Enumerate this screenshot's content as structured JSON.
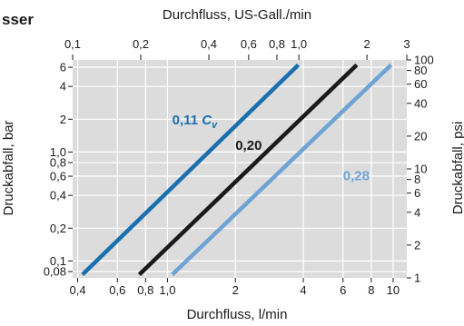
{
  "header": {
    "title_fragment": "sser"
  },
  "chart_data": {
    "type": "line",
    "title": "",
    "xlabel": "Durchfluss, l/min",
    "x2label": "Durchfluss, US-Gall./min",
    "ylabel": "Druckabfall, bar",
    "y2label": "Druckabfall, psi",
    "x_scale": "log",
    "y_scale": "log",
    "xlim": [
      0.38,
      11.5
    ],
    "ylim": [
      0.07,
      7.0
    ],
    "x2lim": [
      0.1,
      3.0
    ],
    "y2lim": [
      1,
      100
    ],
    "grid": true,
    "x_ticks": [
      {
        "value": 0.4,
        "label": "0,4"
      },
      {
        "value": 0.6,
        "label": "0,6"
      },
      {
        "value": 0.8,
        "label": "0,8"
      },
      {
        "value": 1.0,
        "label": "1,0"
      },
      {
        "value": 2,
        "label": "2"
      },
      {
        "value": 4,
        "label": "4"
      },
      {
        "value": 6,
        "label": "6"
      },
      {
        "value": 8,
        "label": "8"
      },
      {
        "value": 10,
        "label": "10"
      }
    ],
    "x2_ticks": [
      {
        "value": 0.1,
        "label": "0,1"
      },
      {
        "value": 0.2,
        "label": "0,2"
      },
      {
        "value": 0.4,
        "label": "0,4"
      },
      {
        "value": 0.6,
        "label": "0,6"
      },
      {
        "value": 0.8,
        "label": "0,8"
      },
      {
        "value": 1.0,
        "label": "1,0"
      },
      {
        "value": 2,
        "label": "2"
      },
      {
        "value": 3,
        "label": "3"
      }
    ],
    "y_ticks": [
      {
        "value": 6,
        "label": "6"
      },
      {
        "value": 4,
        "label": "4"
      },
      {
        "value": 2,
        "label": "2"
      },
      {
        "value": 1.0,
        "label": "1,0"
      },
      {
        "value": 0.8,
        "label": "0,8"
      },
      {
        "value": 0.6,
        "label": "0,6"
      },
      {
        "value": 0.4,
        "label": "0,4"
      },
      {
        "value": 0.2,
        "label": "0,2"
      },
      {
        "value": 0.1,
        "label": "0,1"
      },
      {
        "value": 0.08,
        "label": "0,08"
      }
    ],
    "y2_ticks": [
      {
        "value": 100,
        "label": "100"
      },
      {
        "value": 80,
        "label": "80"
      },
      {
        "value": 60,
        "label": "60"
      },
      {
        "value": 40,
        "label": "40"
      },
      {
        "value": 20,
        "label": "20"
      },
      {
        "value": 10,
        "label": "10"
      },
      {
        "value": 8,
        "label": "8"
      },
      {
        "value": 6,
        "label": "6"
      },
      {
        "value": 4,
        "label": "4"
      },
      {
        "value": 2,
        "label": "2"
      },
      {
        "value": 1,
        "label": "1"
      }
    ],
    "series": [
      {
        "name": "0,11",
        "name_symbol": "C",
        "name_subscript": "v",
        "color": "#1a6faf",
        "x": [
          0.42,
          3.8
        ],
        "y": [
          0.075,
          6.3
        ]
      },
      {
        "name": "0,20",
        "color": "#1a1a1a",
        "x": [
          0.75,
          6.9
        ],
        "y": [
          0.075,
          6.3
        ]
      },
      {
        "name": "0,28",
        "color": "#6fa3d4",
        "x": [
          1.05,
          9.8
        ],
        "y": [
          0.075,
          6.3
        ]
      }
    ],
    "annotations": [
      {
        "series": 0,
        "x": 1.05,
        "y": 1.8
      },
      {
        "series": 1,
        "x": 2.0,
        "y": 1.05
      },
      {
        "series": 2,
        "x": 6.0,
        "y": 0.55
      }
    ]
  }
}
